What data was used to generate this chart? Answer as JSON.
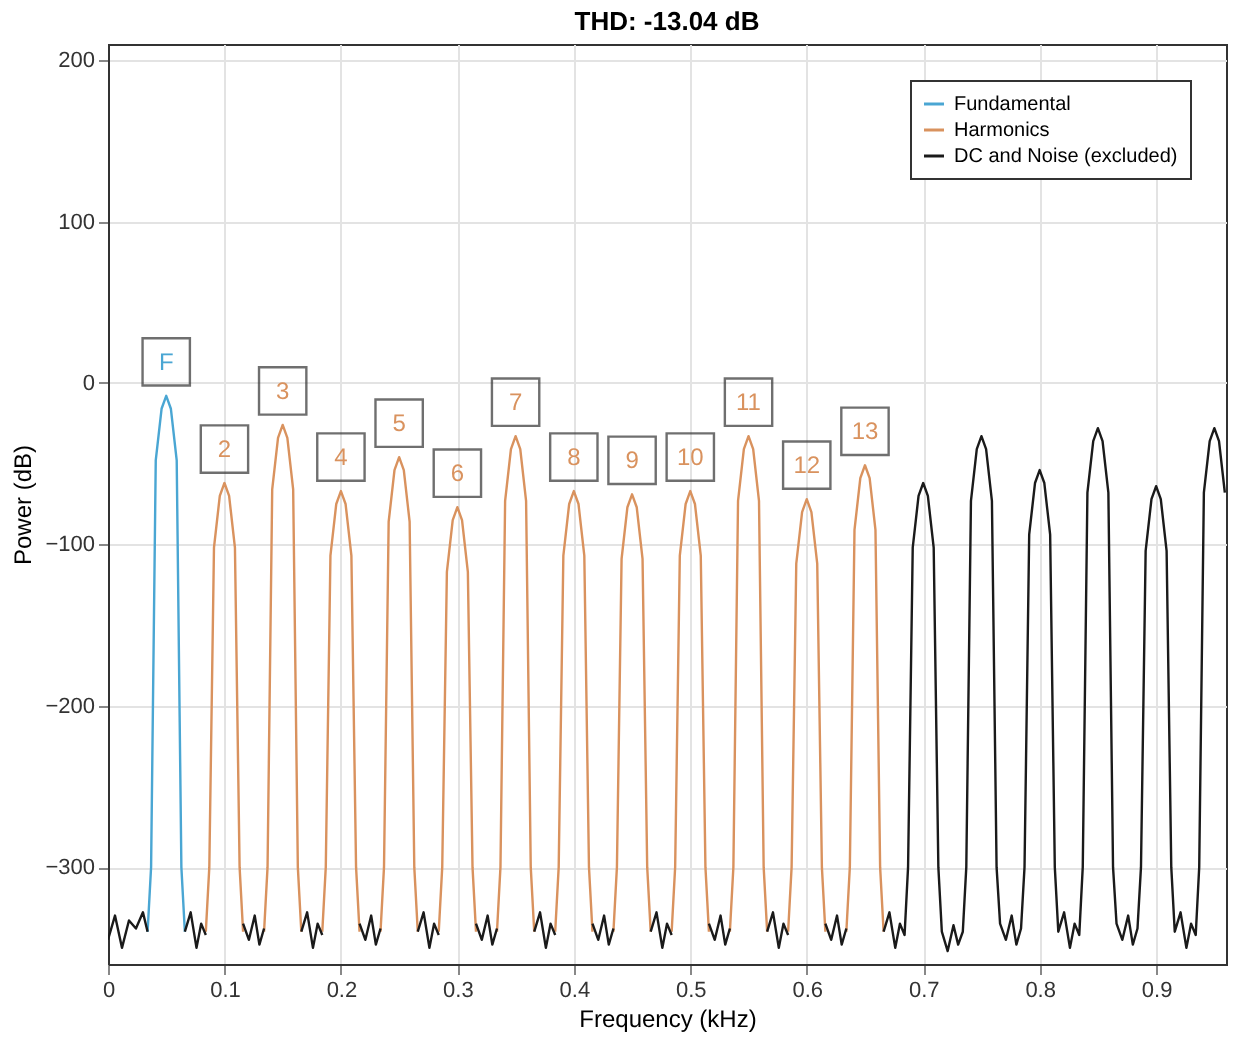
{
  "chart_data": {
    "type": "line",
    "title": "THD: -13.04 dB",
    "xlabel": "Frequency (kHz)",
    "ylabel": "Power (dB)",
    "xlim": [
      0,
      0.96
    ],
    "ylim": [
      -360,
      210
    ],
    "xticks": [
      0,
      0.1,
      0.2,
      0.3,
      0.4,
      0.5,
      0.6,
      0.7,
      0.8,
      0.9
    ],
    "yticks": [
      -300,
      -200,
      -100,
      0,
      100,
      200
    ],
    "grid": true,
    "legend": "top right",
    "series": [
      {
        "name": "Fundamental",
        "color": "#4aa6d3",
        "x": [
          0.034,
          0.037,
          0.041,
          0.046,
          0.05,
          0.054,
          0.059,
          0.063,
          0.066
        ],
        "values": [
          -340,
          -300,
          -48,
          -16,
          -8,
          -16,
          -48,
          -300,
          -340
        ]
      },
      {
        "name": "Harmonics",
        "color": "#d9925e",
        "x": [
          0.084,
          0.087,
          0.091,
          0.096,
          0.1,
          0.104,
          0.109,
          0.113,
          0.116,
          0.117,
          0.134,
          0.137,
          0.141,
          0.146,
          0.15,
          0.154,
          0.159,
          0.163,
          0.166,
          0.167,
          0.184,
          0.187,
          0.191,
          0.196,
          0.2,
          0.204,
          0.209,
          0.213,
          0.216,
          0.217,
          0.234,
          0.237,
          0.241,
          0.246,
          0.25,
          0.254,
          0.259,
          0.263,
          0.266,
          0.267,
          0.284,
          0.287,
          0.291,
          0.296,
          0.3,
          0.304,
          0.309,
          0.313,
          0.316,
          0.317,
          0.334,
          0.337,
          0.341,
          0.346,
          0.35,
          0.354,
          0.359,
          0.363,
          0.366,
          0.367,
          0.384,
          0.387,
          0.391,
          0.396,
          0.4,
          0.404,
          0.409,
          0.413,
          0.416,
          0.417,
          0.434,
          0.437,
          0.441,
          0.446,
          0.45,
          0.454,
          0.459,
          0.463,
          0.466,
          0.467,
          0.484,
          0.487,
          0.491,
          0.496,
          0.5,
          0.504,
          0.509,
          0.513,
          0.516,
          0.517,
          0.534,
          0.537,
          0.541,
          0.546,
          0.55,
          0.554,
          0.559,
          0.563,
          0.566,
          0.567,
          0.584,
          0.587,
          0.591,
          0.596,
          0.6,
          0.604,
          0.609,
          0.613,
          0.616,
          0.617,
          0.634,
          0.637,
          0.641,
          0.646,
          0.65,
          0.654,
          0.659,
          0.663,
          0.666
        ],
        "values": [
          -340,
          -300,
          -102,
          -70,
          -62,
          -70,
          -102,
          -300,
          -340,
          null,
          -340,
          -300,
          -66,
          -34,
          -26,
          -34,
          -66,
          -300,
          -340,
          null,
          -340,
          -300,
          -107,
          -75,
          -67,
          -75,
          -107,
          -300,
          -340,
          null,
          -340,
          -300,
          -86,
          -54,
          -46,
          -54,
          -86,
          -300,
          -340,
          null,
          -340,
          -300,
          -117,
          -85,
          -77,
          -85,
          -117,
          -300,
          -340,
          null,
          -340,
          -300,
          -73,
          -41,
          -33,
          -41,
          -73,
          -300,
          -340,
          null,
          -340,
          -300,
          -107,
          -75,
          -67,
          -75,
          -107,
          -300,
          -340,
          null,
          -340,
          -300,
          -109,
          -77,
          -69,
          -77,
          -109,
          -300,
          -340,
          null,
          -340,
          -300,
          -107,
          -75,
          -67,
          -75,
          -107,
          -300,
          -340,
          null,
          -340,
          -300,
          -73,
          -41,
          -33,
          -41,
          -73,
          -300,
          -340,
          null,
          -340,
          -300,
          -112,
          -80,
          -72,
          -80,
          -112,
          -300,
          -340,
          null,
          -340,
          -300,
          -91,
          -59,
          -51,
          -59,
          -91,
          -300,
          -340
        ]
      },
      {
        "name": "DC and Noise (excluded)",
        "color": "#1a1a1a",
        "x": [
          0,
          0.006,
          0.012,
          0.018,
          0.024,
          0.03,
          0.034,
          0.035,
          0.066,
          0.071,
          0.076,
          0.08,
          0.084,
          0.085,
          0.116,
          0.121,
          0.126,
          0.13,
          0.134,
          0.135,
          0.166,
          0.171,
          0.176,
          0.18,
          0.184,
          0.185,
          0.216,
          0.221,
          0.226,
          0.23,
          0.234,
          0.235,
          0.266,
          0.271,
          0.276,
          0.28,
          0.284,
          0.285,
          0.316,
          0.321,
          0.326,
          0.33,
          0.334,
          0.335,
          0.366,
          0.371,
          0.376,
          0.38,
          0.384,
          0.385,
          0.416,
          0.421,
          0.426,
          0.43,
          0.434,
          0.435,
          0.466,
          0.471,
          0.476,
          0.48,
          0.484,
          0.485,
          0.516,
          0.521,
          0.526,
          0.53,
          0.534,
          0.535,
          0.566,
          0.571,
          0.576,
          0.58,
          0.584,
          0.585,
          0.616,
          0.621,
          0.626,
          0.63,
          0.634,
          0.635,
          0.666,
          0.671,
          0.676,
          0.68,
          0.684,
          0.687,
          0.691,
          0.696,
          0.7,
          0.704,
          0.709,
          0.713,
          0.716,
          0.721,
          0.726,
          0.73,
          0.734,
          0.737,
          0.741,
          0.746,
          0.75,
          0.754,
          0.759,
          0.763,
          0.766,
          0.771,
          0.776,
          0.78,
          0.784,
          0.787,
          0.791,
          0.796,
          0.8,
          0.804,
          0.809,
          0.813,
          0.816,
          0.821,
          0.826,
          0.83,
          0.834,
          0.837,
          0.841,
          0.846,
          0.85,
          0.854,
          0.859,
          0.863,
          0.866,
          0.871,
          0.876,
          0.88,
          0.884,
          0.887,
          0.891,
          0.896,
          0.9,
          0.904,
          0.909,
          0.913,
          0.916,
          0.921,
          0.926,
          0.93,
          0.934,
          0.937,
          0.941,
          0.946,
          0.95,
          0.954,
          0.959
        ],
        "values": [
          -345,
          -330,
          -350,
          -333,
          -338,
          -328,
          -340,
          null,
          -340,
          -328,
          -350,
          -335,
          -342,
          null,
          -335,
          -345,
          -330,
          -348,
          -338,
          null,
          -340,
          -328,
          -350,
          -335,
          -342,
          null,
          -335,
          -345,
          -330,
          -348,
          -338,
          null,
          -340,
          -328,
          -350,
          -335,
          -342,
          null,
          -335,
          -345,
          -330,
          -348,
          -338,
          null,
          -340,
          -328,
          -350,
          -335,
          -342,
          null,
          -335,
          -345,
          -330,
          -348,
          -338,
          null,
          -340,
          -328,
          -350,
          -335,
          -342,
          null,
          -335,
          -345,
          -330,
          -348,
          -338,
          null,
          -340,
          -328,
          -350,
          -335,
          -342,
          null,
          -335,
          -345,
          -330,
          -348,
          -338,
          null,
          -340,
          -328,
          -350,
          -335,
          -342,
          -300,
          -102,
          -70,
          -62,
          -70,
          -102,
          -300,
          -340,
          -352,
          -336,
          -348,
          -340,
          -300,
          -73,
          -41,
          -33,
          -41,
          -73,
          -300,
          -335,
          -345,
          -330,
          -348,
          -338,
          -300,
          -94,
          -62,
          -54,
          -62,
          -94,
          -300,
          -340,
          -328,
          -350,
          -335,
          -342,
          -300,
          -68,
          -36,
          -28,
          -36,
          -68,
          -300,
          -335,
          -345,
          -330,
          -348,
          -338,
          -300,
          -104,
          -72,
          -64,
          -72,
          -104,
          -300,
          -340,
          -328,
          -350,
          -335,
          -342,
          -300,
          -68,
          -36,
          -28,
          -36,
          -68
        ]
      }
    ],
    "annotations": [
      {
        "text": "F",
        "x": 0.05,
        "y": -8
      },
      {
        "text": "2",
        "x": 0.1,
        "y": -62
      },
      {
        "text": "3",
        "x": 0.15,
        "y": -26
      },
      {
        "text": "4",
        "x": 0.2,
        "y": -67
      },
      {
        "text": "5",
        "x": 0.25,
        "y": -46
      },
      {
        "text": "6",
        "x": 0.3,
        "y": -77
      },
      {
        "text": "7",
        "x": 0.35,
        "y": -33
      },
      {
        "text": "8",
        "x": 0.4,
        "y": -67
      },
      {
        "text": "9",
        "x": 0.45,
        "y": -69
      },
      {
        "text": "10",
        "x": 0.5,
        "y": -67
      },
      {
        "text": "11",
        "x": 0.55,
        "y": -33
      },
      {
        "text": "12",
        "x": 0.6,
        "y": -72
      },
      {
        "text": "13",
        "x": 0.65,
        "y": -51
      }
    ]
  }
}
